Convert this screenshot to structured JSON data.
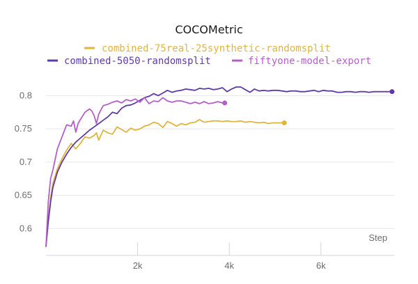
{
  "chart_data": {
    "type": "line",
    "title": "COCOMetric",
    "xlabel": "Step",
    "ylabel": "",
    "xlim": [
      0,
      7600
    ],
    "ylim": [
      0.572,
      0.835
    ],
    "x_ticks": [
      {
        "value": 2000,
        "label": "2k"
      },
      {
        "value": 4000,
        "label": "4k"
      },
      {
        "value": 6000,
        "label": "6k"
      }
    ],
    "y_ticks": [
      {
        "value": 0.6,
        "label": "0.6"
      },
      {
        "value": 0.65,
        "label": "0.65"
      },
      {
        "value": 0.7,
        "label": "0.7"
      },
      {
        "value": 0.75,
        "label": "0.75"
      },
      {
        "value": 0.8,
        "label": "0.8"
      }
    ],
    "grid": true,
    "legend_position": "top",
    "series": [
      {
        "name": "combined-75real-25synthetic-randomsplit",
        "color": "#e0b43c",
        "x": [
          0,
          50,
          100,
          150,
          250,
          350,
          450,
          550,
          650,
          750,
          850,
          950,
          1050,
          1100,
          1150,
          1250,
          1350,
          1450,
          1550,
          1650,
          1750,
          1850,
          1950,
          2050,
          2150,
          2250,
          2350,
          2450,
          2550,
          2650,
          2750,
          2850,
          2950,
          3050,
          3150,
          3250,
          3350,
          3450,
          3550,
          3650,
          3750,
          3850,
          3950,
          4050,
          4150,
          4250,
          4350,
          4450,
          4550,
          4650,
          4750,
          4850,
          4950,
          5050,
          5150,
          5200
        ],
        "values": [
          0.573,
          0.615,
          0.645,
          0.668,
          0.69,
          0.705,
          0.718,
          0.728,
          0.72,
          0.728,
          0.738,
          0.736,
          0.74,
          0.744,
          0.733,
          0.748,
          0.744,
          0.742,
          0.753,
          0.749,
          0.745,
          0.751,
          0.748,
          0.75,
          0.754,
          0.756,
          0.76,
          0.758,
          0.752,
          0.761,
          0.758,
          0.754,
          0.758,
          0.756,
          0.759,
          0.76,
          0.764,
          0.76,
          0.761,
          0.762,
          0.762,
          0.761,
          0.762,
          0.761,
          0.761,
          0.762,
          0.76,
          0.761,
          0.76,
          0.759,
          0.76,
          0.758,
          0.759,
          0.759,
          0.759,
          0.759
        ]
      },
      {
        "name": "combined-5050-randomsplit",
        "color": "#5f3aa6",
        "x": [
          0,
          50,
          100,
          150,
          250,
          350,
          450,
          550,
          650,
          750,
          850,
          950,
          1050,
          1150,
          1250,
          1350,
          1450,
          1550,
          1650,
          1750,
          1850,
          1950,
          2050,
          2150,
          2250,
          2350,
          2450,
          2550,
          2650,
          2750,
          2850,
          2950,
          3050,
          3150,
          3250,
          3350,
          3450,
          3550,
          3650,
          3750,
          3850,
          3950,
          4050,
          4150,
          4250,
          4350,
          4450,
          4550,
          4650,
          4750,
          4850,
          4950,
          5050,
          5150,
          5250,
          5350,
          5450,
          5550,
          5650,
          5750,
          5850,
          5950,
          6050,
          6150,
          6250,
          6350,
          6450,
          6550,
          6650,
          6750,
          6850,
          6950,
          7050,
          7150,
          7250,
          7350,
          7450,
          7550
        ],
        "values": [
          0.573,
          0.61,
          0.64,
          0.662,
          0.685,
          0.7,
          0.712,
          0.722,
          0.73,
          0.736,
          0.742,
          0.748,
          0.753,
          0.758,
          0.763,
          0.768,
          0.775,
          0.773,
          0.781,
          0.785,
          0.786,
          0.789,
          0.793,
          0.797,
          0.799,
          0.803,
          0.8,
          0.804,
          0.808,
          0.805,
          0.807,
          0.808,
          0.81,
          0.809,
          0.808,
          0.811,
          0.81,
          0.811,
          0.809,
          0.81,
          0.812,
          0.806,
          0.81,
          0.813,
          0.813,
          0.809,
          0.805,
          0.81,
          0.807,
          0.808,
          0.807,
          0.808,
          0.808,
          0.807,
          0.806,
          0.807,
          0.807,
          0.806,
          0.806,
          0.807,
          0.808,
          0.806,
          0.808,
          0.807,
          0.807,
          0.805,
          0.805,
          0.806,
          0.806,
          0.805,
          0.806,
          0.806,
          0.805,
          0.806,
          0.806,
          0.806,
          0.806,
          0.806
        ]
      },
      {
        "name": "fiftyone-model-export",
        "color": "#b35fc9",
        "x": [
          0,
          50,
          100,
          150,
          250,
          350,
          450,
          550,
          600,
          650,
          700,
          750,
          850,
          950,
          1000,
          1050,
          1100,
          1150,
          1250,
          1350,
          1450,
          1550,
          1650,
          1750,
          1850,
          1950,
          2050,
          2150,
          2250,
          2350,
          2450,
          2550,
          2650,
          2750,
          2850,
          2950,
          3050,
          3150,
          3250,
          3350,
          3450,
          3550,
          3650,
          3750,
          3850,
          3900
        ],
        "values": [
          0.573,
          0.64,
          0.675,
          0.688,
          0.72,
          0.738,
          0.756,
          0.754,
          0.762,
          0.745,
          0.758,
          0.764,
          0.775,
          0.78,
          0.777,
          0.77,
          0.758,
          0.772,
          0.785,
          0.787,
          0.79,
          0.792,
          0.789,
          0.794,
          0.792,
          0.795,
          0.79,
          0.797,
          0.788,
          0.792,
          0.791,
          0.797,
          0.792,
          0.79,
          0.792,
          0.792,
          0.79,
          0.788,
          0.79,
          0.788,
          0.791,
          0.788,
          0.789,
          0.791,
          0.789,
          0.789
        ]
      }
    ]
  }
}
